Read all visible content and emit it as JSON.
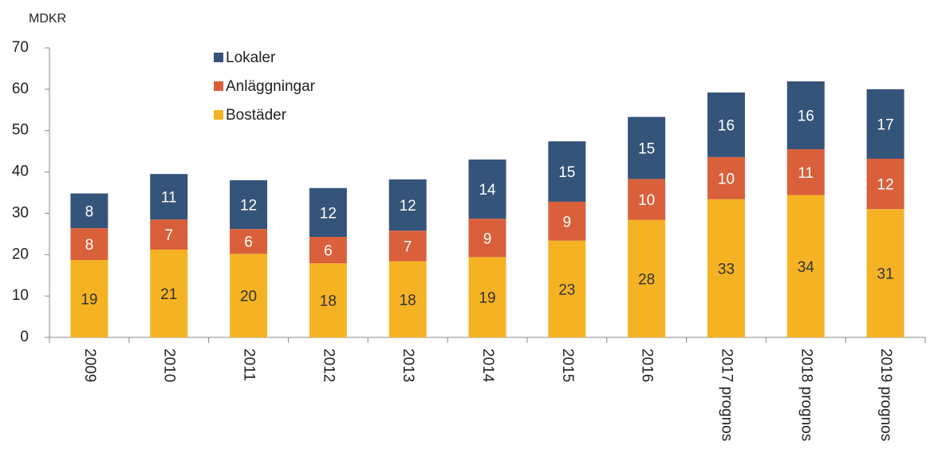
{
  "chart_data": {
    "type": "stacked_bar",
    "ylabel": "MDKR",
    "categories": [
      "2009",
      "2010",
      "2011",
      "2012",
      "2013",
      "2014",
      "2015",
      "2016",
      "2017 prognos",
      "2018 prognos",
      "2019 prognos"
    ],
    "series": [
      {
        "name": "Bostäder",
        "color": "#f5b324",
        "values": [
          18.7,
          21.2,
          20.2,
          17.9,
          18.4,
          19.4,
          23.4,
          28.4,
          33.4,
          34.4,
          31.0
        ],
        "value_labels": [
          "19",
          "21",
          "20",
          "18",
          "18",
          "19",
          "23",
          "28",
          "33",
          "34",
          "31"
        ]
      },
      {
        "name": "Anläggningar",
        "color": "#d9603b",
        "values": [
          7.7,
          7.3,
          6.0,
          6.4,
          7.4,
          9.3,
          9.4,
          9.9,
          10.2,
          11.1,
          12.2
        ],
        "value_labels": [
          "8",
          "7",
          "6",
          "6",
          "7",
          "9",
          "9",
          "10",
          "10",
          "11",
          "12"
        ]
      },
      {
        "name": "Lokaler",
        "color": "#35547a",
        "values": [
          8.4,
          11.0,
          11.8,
          11.8,
          12.4,
          14.3,
          14.6,
          15.0,
          15.6,
          16.4,
          16.8
        ],
        "value_labels": [
          "8",
          "11",
          "12",
          "12",
          "12",
          "14",
          "15",
          "15",
          "16",
          "16",
          "17"
        ]
      }
    ],
    "ylim": [
      0,
      70
    ],
    "yticks": [
      0,
      10,
      20,
      30,
      40,
      50,
      60,
      70
    ]
  }
}
